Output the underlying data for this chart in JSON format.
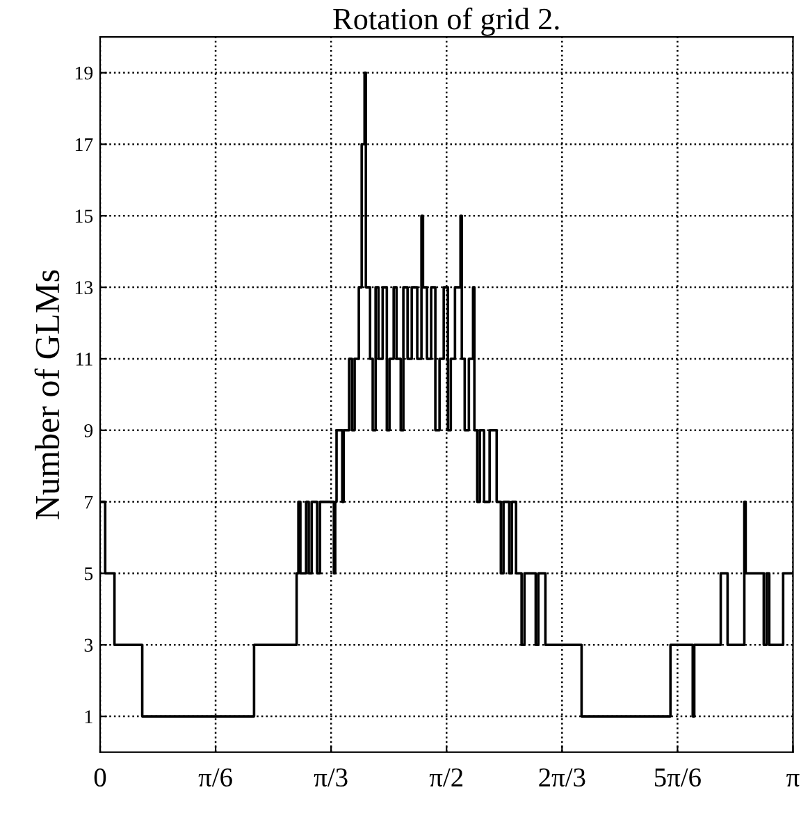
{
  "chart_data": {
    "type": "step",
    "title": "Rotation of grid 2.",
    "ylabel": "Number of GLMs",
    "x": [
      0,
      0.023,
      0.065,
      0.191,
      0.698,
      0.891,
      0.899,
      0.908,
      0.934,
      0.946,
      0.959,
      0.984,
      0.997,
      1.06,
      1.066,
      1.072,
      1.098,
      1.104,
      1.129,
      1.142,
      1.154,
      1.173,
      1.186,
      1.199,
      1.205,
      1.224,
      1.236,
      1.249,
      1.262,
      1.281,
      1.3,
      1.312,
      1.331,
      1.344,
      1.363,
      1.375,
      1.394,
      1.413,
      1.438,
      1.457,
      1.464,
      1.482,
      1.501,
      1.52,
      1.539,
      1.558,
      1.577,
      1.59,
      1.609,
      1.634,
      1.64,
      1.653,
      1.672,
      1.691,
      1.697,
      1.71,
      1.722,
      1.741,
      1.766,
      1.798,
      1.817,
      1.829,
      1.855,
      1.867,
      1.886,
      1.911,
      1.924,
      1.975,
      1.987,
      2.019,
      2.183,
      2.586,
      2.687,
      2.694,
      2.814,
      2.845,
      2.921,
      2.927,
      3.009,
      3.022,
      3.034,
      3.097,
      3.14
    ],
    "series": [
      {
        "color": "#000000",
        "values": [
          7,
          5,
          3,
          1,
          3,
          5,
          7,
          5,
          7,
          5,
          7,
          5,
          7,
          5,
          7,
          9,
          7,
          9,
          11,
          9,
          11,
          13,
          17,
          19,
          13,
          11,
          9,
          13,
          11,
          13,
          9,
          11,
          13,
          11,
          9,
          13,
          11,
          13,
          11,
          15,
          13,
          11,
          13,
          9,
          11,
          13,
          9,
          11,
          13,
          15,
          11,
          9,
          11,
          13,
          9,
          7,
          9,
          7,
          9,
          7,
          5,
          7,
          5,
          7,
          5,
          3,
          5,
          3,
          5,
          3,
          1,
          3,
          1,
          3,
          5,
          3,
          7,
          5,
          3,
          5,
          3,
          5,
          5
        ]
      }
    ],
    "xlim": [
      0,
      3.1416
    ],
    "xticks": [
      0,
      {
        "value": 0.5236,
        "label": "π/6"
      },
      {
        "value": 1.0472,
        "label": "π/3"
      },
      {
        "value": 1.5708,
        "label": "π/2"
      },
      {
        "value": 2.0944,
        "label": "2π/3"
      },
      {
        "value": 2.618,
        "label": "5π/6"
      },
      {
        "value": 3.1416,
        "label": "π"
      }
    ],
    "ylim": [
      0,
      20
    ],
    "yticks": [
      1,
      3,
      5,
      7,
      9,
      11,
      13,
      15,
      17,
      19
    ],
    "grid": true,
    "line_style": "solid",
    "marker": "none"
  }
}
